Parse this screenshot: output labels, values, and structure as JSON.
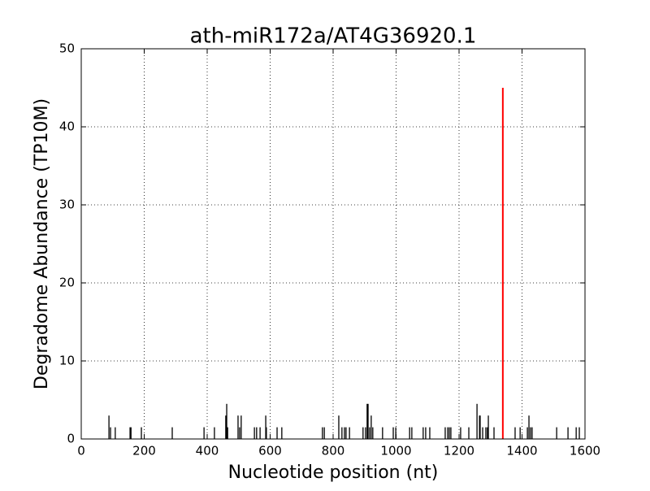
{
  "chart_data": {
    "type": "stem",
    "title": "ath-miR172a/AT4G36920.1",
    "xlabel": "Nucleotide position (nt)",
    "ylabel": "Degradome Abundance (TP10M)",
    "xlim": [
      0,
      1600
    ],
    "xticks": [
      0,
      200,
      400,
      600,
      800,
      1000,
      1200,
      1400,
      1600
    ],
    "ylim": [
      0,
      50
    ],
    "yticks": [
      0,
      10,
      20,
      30,
      40,
      50
    ],
    "grid": true,
    "series": [
      {
        "color": "#000000",
        "x": [
          88,
          93,
          108,
          155,
          158,
          191,
          289,
          390,
          423,
          459,
          462,
          465,
          498,
          503,
          508,
          550,
          557,
          568,
          586,
          588,
          622,
          637,
          766,
          772,
          818,
          828,
          836,
          841,
          852,
          895,
          903,
          908,
          911,
          916,
          921,
          926,
          957,
          991,
          999,
          1043,
          1050,
          1086,
          1094,
          1107,
          1156,
          1164,
          1169,
          1174,
          1205,
          1231,
          1257,
          1265,
          1267,
          1275,
          1285,
          1290,
          1293,
          1311,
          1378,
          1394,
          1417,
          1422,
          1427,
          1432,
          1510,
          1546,
          1572,
          1582
        ],
        "values": [
          3,
          1.5,
          1.5,
          1.5,
          1.5,
          1.5,
          1.5,
          1.5,
          1.5,
          3,
          4.5,
          1.5,
          3,
          1.5,
          3,
          1.5,
          1.5,
          1.5,
          3,
          1.5,
          1.5,
          1.5,
          1.5,
          1.5,
          3,
          1.5,
          1.5,
          1.5,
          1.5,
          1.5,
          1.5,
          4.5,
          4.5,
          1.5,
          3,
          1.5,
          1.5,
          1.5,
          1.5,
          1.5,
          1.5,
          1.5,
          1.5,
          1.5,
          1.5,
          1.5,
          1.5,
          1.5,
          1.5,
          1.5,
          4.5,
          3,
          3,
          1.5,
          1.5,
          1.5,
          3,
          1.5,
          1.5,
          1.5,
          1.5,
          3,
          1.5,
          1.5,
          1.5,
          1.5,
          1.5,
          1.5
        ]
      },
      {
        "color": "#ff0000",
        "x": [
          1339
        ],
        "values": [
          45
        ]
      }
    ]
  }
}
